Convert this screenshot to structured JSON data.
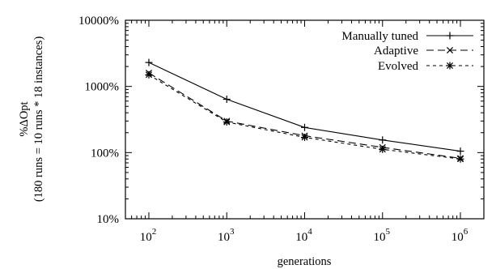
{
  "chart_data": {
    "type": "line",
    "x_scale": "log",
    "y_scale": "log",
    "x": [
      100,
      1000,
      10000,
      100000,
      1000000
    ],
    "xticks": [
      100,
      1000,
      10000,
      100000,
      1000000
    ],
    "xtick_bases": [
      "10",
      "10",
      "10",
      "10",
      "10"
    ],
    "xtick_exponents": [
      "2",
      "3",
      "4",
      "5",
      "6"
    ],
    "xlim": [
      50,
      2000000
    ],
    "yticks": [
      10,
      100,
      1000,
      10000
    ],
    "ytick_labels": [
      "10%",
      "100%",
      "1000%",
      "10000%"
    ],
    "ylim": [
      10,
      10000
    ],
    "xlabel": "generations",
    "ylabel_line1": "%ΔOpt",
    "ylabel_line2": "(180 runs = 10 runs * 18 instances)",
    "legend_position": "top-right",
    "grid": false,
    "series": [
      {
        "name": "Manually tuned",
        "marker": "plus",
        "dash": "solid",
        "values": [
          2300,
          640,
          240,
          155,
          105
        ]
      },
      {
        "name": "Adaptive",
        "marker": "cross",
        "dash": "long-dash",
        "values": [
          1600,
          300,
          180,
          120,
          82
        ]
      },
      {
        "name": "Evolved",
        "marker": "star",
        "dash": "short-dash",
        "values": [
          1500,
          290,
          170,
          112,
          80
        ]
      }
    ]
  }
}
